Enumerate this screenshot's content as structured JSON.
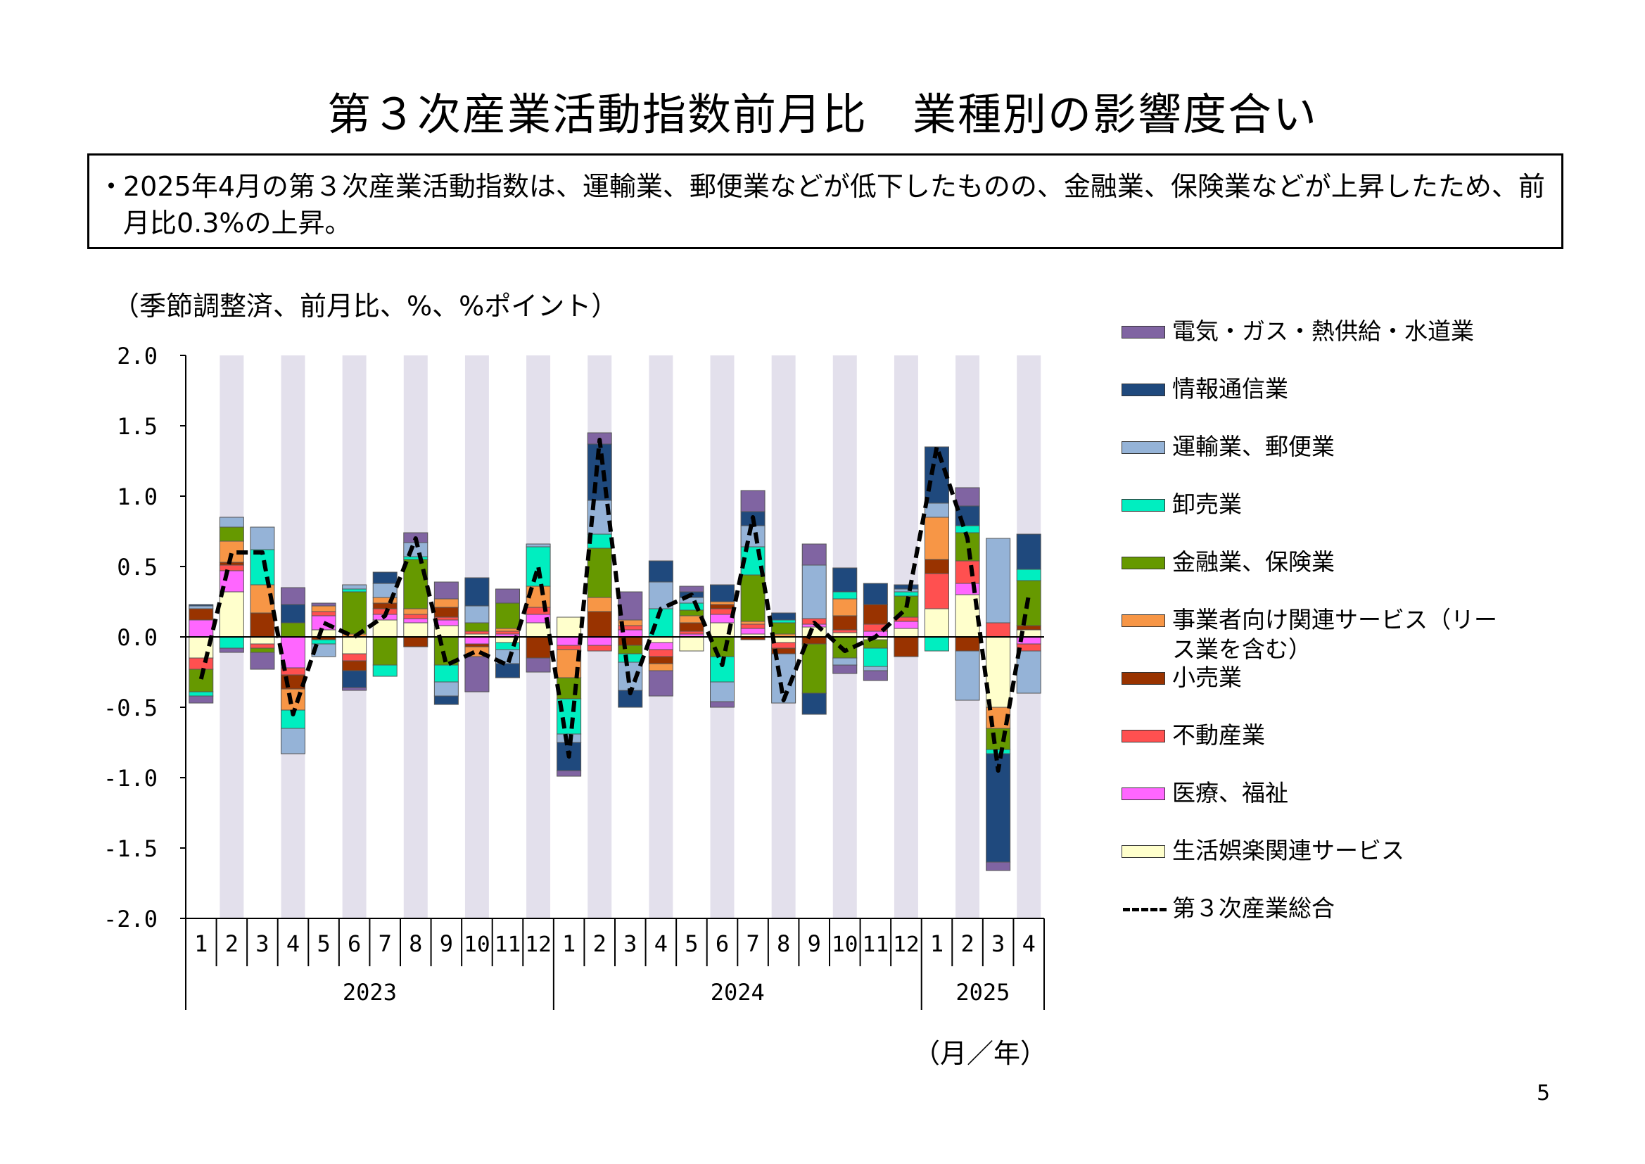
{
  "title": "第３次産業活動指数前月比　業種別の影響度合い",
  "summary": {
    "bullet": "・",
    "text": "2025年4月の第３次産業活動指数は、運輸業、郵便業などが低下したものの、金融業、保険業などが上昇したため、前月比0.3%の上昇。"
  },
  "unit_label": "（季節調整済、前月比、%、%ポイント）",
  "xaxis_unit_label": "（月／年）",
  "page_number": "5",
  "chart_data": {
    "type": "bar",
    "stacked": true,
    "overlay_line": "第３次産業総合",
    "ylim": [
      -2.0,
      2.0
    ],
    "yticks": [
      "2.0",
      "1.5",
      "1.0",
      "0.5",
      "0.0",
      "-0.5",
      "-1.0",
      "-1.5",
      "-2.0"
    ],
    "grid": false,
    "legend_position": "right",
    "month_labels": [
      "1",
      "2",
      "3",
      "4",
      "5",
      "6",
      "7",
      "8",
      "9",
      "10",
      "11",
      "12",
      "1",
      "2",
      "3",
      "4",
      "5",
      "6",
      "7",
      "8",
      "9",
      "10",
      "11",
      "12",
      "1",
      "2",
      "3",
      "4"
    ],
    "year_labels": [
      {
        "label": "2023",
        "months": 12
      },
      {
        "label": "2024",
        "months": 12
      },
      {
        "label": "2025",
        "months": 4
      }
    ],
    "shaded_months_every_other": true,
    "shade_color": "#E3E0EC",
    "series": [
      {
        "name": "生活娯楽関連サービス",
        "color": "#FFFFCC",
        "values": [
          -0.15,
          0.32,
          -0.05,
          0.0,
          0.05,
          -0.12,
          0.12,
          0.1,
          0.08,
          0.02,
          -0.04,
          0.1,
          0.14,
          0.0,
          0.0,
          -0.04,
          -0.1,
          0.1,
          0.02,
          -0.04,
          0.07,
          0.03,
          -0.02,
          0.06,
          0.2,
          0.3,
          -0.5,
          0.05
        ]
      },
      {
        "name": "医療、福祉",
        "color": "#FF66FF",
        "values": [
          0.12,
          0.15,
          0.0,
          -0.22,
          0.1,
          0.0,
          0.04,
          0.03,
          0.04,
          -0.05,
          0.02,
          0.06,
          -0.06,
          -0.06,
          0.05,
          -0.05,
          0.02,
          0.06,
          0.04,
          0.0,
          0.02,
          0.0,
          0.04,
          0.05,
          0.0,
          0.08,
          0.0,
          -0.05
        ]
      },
      {
        "name": "不動産業",
        "color": "#FF5050",
        "values": [
          -0.08,
          0.04,
          -0.03,
          -0.05,
          0.03,
          -0.05,
          0.04,
          0.03,
          0.02,
          0.02,
          0.02,
          0.05,
          -0.03,
          -0.04,
          0.03,
          -0.05,
          0.02,
          0.04,
          0.03,
          -0.04,
          0.04,
          0.02,
          0.05,
          0.03,
          0.25,
          0.16,
          0.1,
          -0.05
        ]
      },
      {
        "name": "小売業",
        "color": "#993300",
        "values": [
          0.08,
          0.02,
          0.17,
          -0.1,
          -0.02,
          -0.07,
          0.04,
          -0.07,
          0.07,
          -0.02,
          0.0,
          -0.15,
          0.0,
          0.18,
          -0.06,
          -0.05,
          0.06,
          0.03,
          -0.02,
          -0.04,
          -0.05,
          0.1,
          0.14,
          -0.14,
          0.1,
          -0.1,
          0.0,
          0.03
        ]
      },
      {
        "name": "事業者向け関連サービス（リース業を含む）",
        "color": "#F79646",
        "values": [
          0.0,
          0.15,
          0.2,
          -0.15,
          0.04,
          0.02,
          0.04,
          0.04,
          0.06,
          -0.07,
          0.02,
          0.15,
          -0.2,
          0.1,
          0.04,
          -0.05,
          0.05,
          0.02,
          0.02,
          0.02,
          0.0,
          0.12,
          0.0,
          0.0,
          0.3,
          0.0,
          -0.15,
          0.0
        ]
      },
      {
        "name": "金融業、保険業",
        "color": "#669900",
        "values": [
          -0.16,
          0.1,
          -0.03,
          0.1,
          0.0,
          0.3,
          -0.2,
          0.35,
          -0.2,
          0.06,
          0.18,
          0.0,
          -0.15,
          0.35,
          -0.06,
          0.0,
          0.04,
          -0.14,
          0.33,
          0.08,
          -0.35,
          -0.15,
          -0.06,
          0.15,
          0.0,
          0.2,
          -0.15,
          0.32
        ]
      },
      {
        "name": "卸売業",
        "color": "#00EEC0",
        "values": [
          -0.03,
          -0.08,
          0.25,
          -0.13,
          -0.03,
          0.02,
          -0.08,
          0.02,
          -0.12,
          0.0,
          -0.05,
          0.28,
          -0.25,
          0.1,
          -0.06,
          0.2,
          0.05,
          -0.18,
          0.2,
          0.02,
          0.0,
          0.05,
          -0.13,
          0.03,
          -0.1,
          0.05,
          -0.03,
          0.08
        ]
      },
      {
        "name": "運輸業、郵便業",
        "color": "#95B3D7",
        "values": [
          0.02,
          0.07,
          0.16,
          -0.18,
          -0.09,
          0.03,
          0.1,
          0.1,
          -0.1,
          0.12,
          -0.1,
          0.02,
          -0.06,
          0.24,
          -0.2,
          0.19,
          0.04,
          -0.14,
          0.15,
          -0.35,
          0.38,
          -0.05,
          -0.03,
          0.02,
          0.1,
          -0.35,
          0.6,
          -0.3
        ]
      },
      {
        "name": "情報通信業",
        "color": "#1F497D",
        "values": [
          0.01,
          0.0,
          0.0,
          0.13,
          0.0,
          -0.12,
          0.08,
          0.0,
          -0.06,
          0.2,
          -0.1,
          0.0,
          -0.2,
          0.4,
          -0.12,
          0.15,
          0.04,
          0.12,
          0.1,
          0.05,
          -0.15,
          0.17,
          0.15,
          0.03,
          0.4,
          0.14,
          -0.77,
          0.25
        ]
      },
      {
        "name": "電気・ガス・熱供給・水道業",
        "color": "#8064A2",
        "values": [
          -0.05,
          -0.03,
          -0.12,
          0.12,
          0.02,
          -0.02,
          0.0,
          0.07,
          0.12,
          -0.25,
          0.1,
          -0.1,
          -0.04,
          0.08,
          0.2,
          -0.18,
          0.04,
          -0.04,
          0.15,
          0.0,
          0.15,
          -0.06,
          -0.07,
          0.0,
          0.0,
          0.13,
          -0.06,
          0.0
        ]
      }
    ],
    "total_line": {
      "name": "第３次産業総合",
      "color": "#000000",
      "values": [
        -0.3,
        0.6,
        0.6,
        -0.55,
        0.1,
        0.0,
        0.15,
        0.7,
        -0.2,
        -0.1,
        -0.2,
        0.5,
        -0.85,
        1.4,
        -0.4,
        0.2,
        0.3,
        -0.2,
        0.85,
        -0.45,
        0.1,
        -0.1,
        0.0,
        0.2,
        1.35,
        0.7,
        -0.95,
        0.3
      ]
    }
  },
  "legend": {
    "items": [
      {
        "label": "電気・ガス・熱供給・水道業",
        "color": "#8064A2",
        "kind": "box"
      },
      {
        "label": "情報通信業",
        "color": "#1F497D",
        "kind": "box"
      },
      {
        "label": "運輸業、郵便業",
        "color": "#95B3D7",
        "kind": "box"
      },
      {
        "label": "卸売業",
        "color": "#00EEC0",
        "kind": "box"
      },
      {
        "label": "金融業、保険業",
        "color": "#669900",
        "kind": "box"
      },
      {
        "label": "事業者向け関連サービス（リー",
        "label2": "ス業を含む）",
        "color": "#F79646",
        "kind": "box"
      },
      {
        "label": "小売業",
        "color": "#993300",
        "kind": "box"
      },
      {
        "label": "不動産業",
        "color": "#FF5050",
        "kind": "box"
      },
      {
        "label": "医療、福祉",
        "color": "#FF66FF",
        "kind": "box"
      },
      {
        "label": "生活娯楽関連サービス",
        "color": "#FFFFCC",
        "kind": "box"
      },
      {
        "label": "第３次産業総合",
        "color": "#000000",
        "kind": "line"
      }
    ]
  }
}
